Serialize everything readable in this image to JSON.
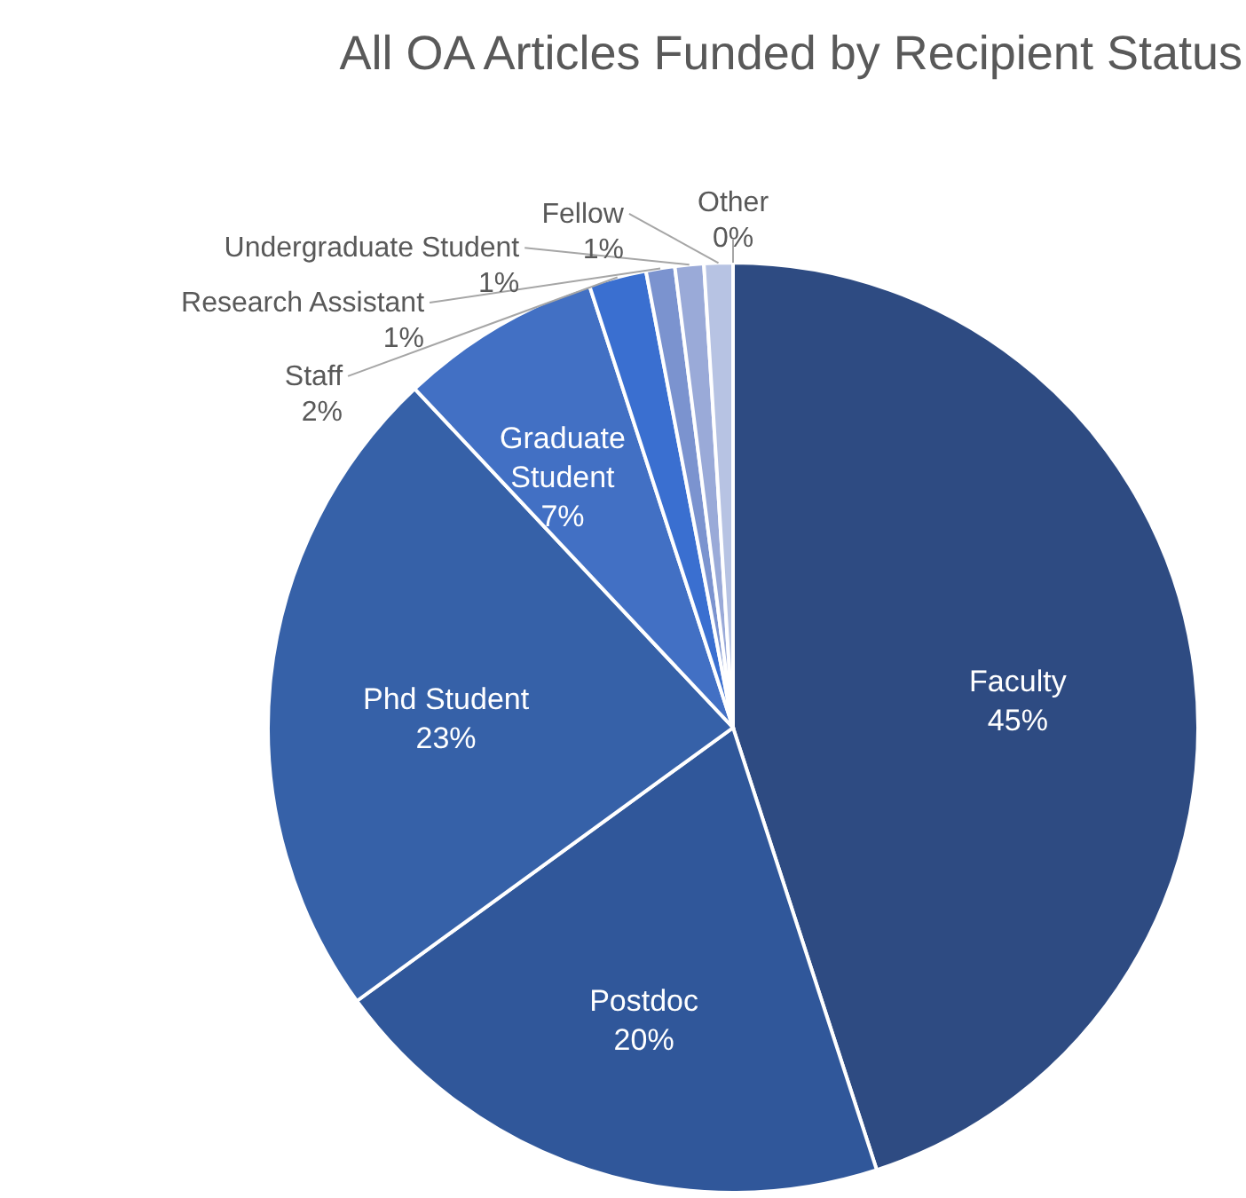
{
  "chart_data": {
    "type": "pie",
    "title": "All OA Articles Funded by Recipient Status",
    "categories": [
      "Faculty",
      "Postdoc",
      "Phd Student",
      "Graduate Student",
      "Staff",
      "Research Assistant",
      "Undergraduate Student",
      "Fellow",
      "Other"
    ],
    "values": [
      45,
      20,
      23,
      7,
      2,
      1,
      1,
      1,
      0
    ],
    "colors": [
      "#2e4b82",
      "#30579a",
      "#3661a8",
      "#4270c4",
      "#3a6fd0",
      "#7b93cf",
      "#9aaad8",
      "#b7c3e3",
      "#cdd5ec"
    ],
    "value_labels": [
      "45%",
      "20%",
      "23%",
      "7%",
      "2%",
      "1%",
      "1%",
      "1%",
      "0%"
    ],
    "legend": false
  }
}
